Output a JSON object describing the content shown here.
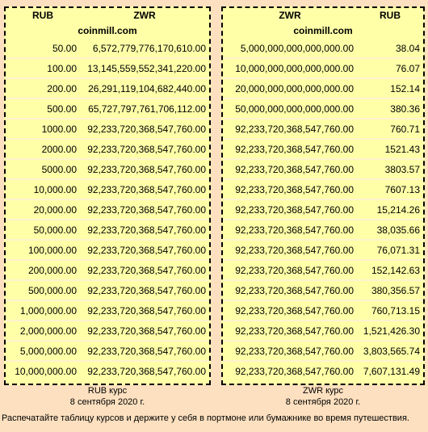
{
  "left_table": {
    "header_from": "RUB",
    "header_to": "ZWR",
    "site": "coinmill.com",
    "rows": [
      [
        "50.00",
        "6,572,779,776,170,610.00"
      ],
      [
        "100.00",
        "13,145,559,552,341,220.00"
      ],
      [
        "200.00",
        "26,291,119,104,682,440.00"
      ],
      [
        "500.00",
        "65,727,797,761,706,112.00"
      ],
      [
        "1000.00",
        "92,233,720,368,547,760.00"
      ],
      [
        "2000.00",
        "92,233,720,368,547,760.00"
      ],
      [
        "5000.00",
        "92,233,720,368,547,760.00"
      ],
      [
        "10,000.00",
        "92,233,720,368,547,760.00"
      ],
      [
        "20,000.00",
        "92,233,720,368,547,760.00"
      ],
      [
        "50,000.00",
        "92,233,720,368,547,760.00"
      ],
      [
        "100,000.00",
        "92,233,720,368,547,760.00"
      ],
      [
        "200,000.00",
        "92,233,720,368,547,760.00"
      ],
      [
        "500,000.00",
        "92,233,720,368,547,760.00"
      ],
      [
        "1,000,000.00",
        "92,233,720,368,547,760.00"
      ],
      [
        "2,000,000.00",
        "92,233,720,368,547,760.00"
      ],
      [
        "5,000,000.00",
        "92,233,720,368,547,760.00"
      ],
      [
        "10,000,000.00",
        "92,233,720,368,547,760.00"
      ]
    ],
    "caption_line1": "RUB курс",
    "caption_line2": "8 сентября 2020 г."
  },
  "right_table": {
    "header_from": "ZWR",
    "header_to": "RUB",
    "site": "coinmill.com",
    "rows": [
      [
        "5,000,000,000,000,000.00",
        "38.04"
      ],
      [
        "10,000,000,000,000,000.00",
        "76.07"
      ],
      [
        "20,000,000,000,000,000.00",
        "152.14"
      ],
      [
        "50,000,000,000,000,000.00",
        "380.36"
      ],
      [
        "92,233,720,368,547,760.00",
        "760.71"
      ],
      [
        "92,233,720,368,547,760.00",
        "1521.43"
      ],
      [
        "92,233,720,368,547,760.00",
        "3803.57"
      ],
      [
        "92,233,720,368,547,760.00",
        "7607.13"
      ],
      [
        "92,233,720,368,547,760.00",
        "15,214.26"
      ],
      [
        "92,233,720,368,547,760.00",
        "38,035.66"
      ],
      [
        "92,233,720,368,547,760.00",
        "76,071.31"
      ],
      [
        "92,233,720,368,547,760.00",
        "152,142.63"
      ],
      [
        "92,233,720,368,547,760.00",
        "380,356.57"
      ],
      [
        "92,233,720,368,547,760.00",
        "760,713.15"
      ],
      [
        "92,233,720,368,547,760.00",
        "1,521,426.30"
      ],
      [
        "92,233,720,368,547,760.00",
        "3,803,565.74"
      ],
      [
        "92,233,720,368,547,760.00",
        "7,607,131.49"
      ]
    ],
    "caption_line1": "ZWR курс",
    "caption_line2": "8 сентября 2020 г."
  },
  "footer_note": "Распечатайте таблицу курсов и держите у себя в портмоне или бумажнике во время путешествия."
}
